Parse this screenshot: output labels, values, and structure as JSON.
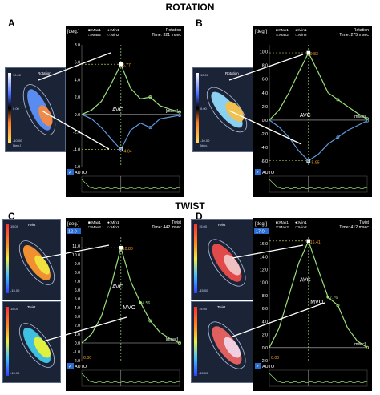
{
  "figure": {
    "section_rotation": "ROTATION",
    "section_twist": "TWIST"
  },
  "colors": {
    "plot_bg": "#000000",
    "curve_green": "#9be07a",
    "curve_blue": "#5f9be0",
    "marker_yellow": "#e6e65a",
    "peak_label_orange": "#f0a020",
    "axis_label": "#ffffff",
    "auto_box": "#2a6cd0"
  },
  "panels": [
    {
      "letter": "A",
      "unit": "[deg.]",
      "legend": [
        "■:Max1",
        "●:Min1",
        "□:Max2",
        "○:Min2"
      ],
      "title": "Rotation",
      "time": "Time: 321 msec",
      "yticks": [
        "8.0",
        "6.0",
        "4.0",
        "2.0",
        "0.0",
        "-2.0",
        "-4.0",
        "-6.0"
      ],
      "xunit": "[msec]",
      "event_label": "AVC",
      "peak_labels": [
        "5.77",
        "-4.04"
      ],
      "auto": "AUTO",
      "heart_title": "Rotation",
      "heart_scale": [
        "10.00",
        "0.00",
        "-10.00",
        "[deg.]"
      ]
    },
    {
      "letter": "B",
      "unit": "[deg.]",
      "legend": [
        "■:Max1",
        "●:Min1",
        "□:Max2",
        "○:Min2"
      ],
      "title": "Rotation",
      "time": "Time: 275 msec",
      "yticks": [
        "10.0",
        "8.0",
        "6.0",
        "4.0",
        "2.0",
        "0.0",
        "-2.0",
        "-4.0",
        "-6.0"
      ],
      "xunit": "[msec]",
      "event_label": "AVC",
      "peak_labels": [
        "9.83",
        "-5.95"
      ],
      "auto": "AUTO",
      "heart_title": "Rotation",
      "heart_scale": [
        "10.00",
        "0.00",
        "-10.00",
        "[deg.]"
      ]
    },
    {
      "letter": "C",
      "unit": "[deg.]",
      "top_tick": "12.0",
      "legend": [
        "■:Max1",
        "●:Min1",
        "□:Max2",
        "○:Min2"
      ],
      "title": "Twist",
      "time": "Time: 442 msec",
      "yticks": [
        "11.0",
        "10.0",
        "9.0",
        "8.0",
        "7.0",
        "6.0",
        "5.0",
        "4.0",
        "3.0",
        "2.0",
        "1.0",
        "0.0",
        "-1.0",
        "-2.0"
      ],
      "xunit": "[msec]",
      "event_labels": [
        "AVC",
        "MVO"
      ],
      "peak_labels": [
        "10.80",
        "4.56",
        "0.00"
      ],
      "auto": "AUTO",
      "heart_title": "Twist",
      "heart_scale": [
        "15.00",
        "0.00",
        "-15.00",
        "[deg.]"
      ]
    },
    {
      "letter": "D",
      "unit": "[deg.]",
      "top_tick": "17.0",
      "legend": [
        "■:Max1",
        "●:Min1",
        "□:Max2",
        "○:Min2"
      ],
      "title": "Twist",
      "time": "Time: 412 msec",
      "yticks": [
        "16.0",
        "14.0",
        "12.0",
        "10.0",
        "8.0",
        "6.0",
        "4.0",
        "2.0",
        "0.0",
        "-2.0"
      ],
      "xunit": "[msec]",
      "event_labels": [
        "AVC",
        "MVO"
      ],
      "peak_labels": [
        "16.41",
        "7.76",
        "0.00"
      ],
      "auto": "AUTO",
      "heart_title": "Twist",
      "heart_scale": [
        "15.00",
        "0.00",
        "-15.00",
        "[deg.]"
      ]
    }
  ],
  "chart_data": [
    {
      "type": "line",
      "panel": "A",
      "title": "Rotation",
      "ylabel": "[deg.]",
      "xlabel": "[msec]",
      "ylim": [
        -6,
        8
      ],
      "x": [
        0,
        10,
        20,
        30,
        40,
        50,
        60,
        70,
        80,
        90,
        100
      ],
      "series": [
        {
          "values": [
            0,
            0.5,
            1.5,
            3.5,
            5.77,
            3.0,
            1.8,
            2.0,
            1.0,
            0.6,
            0.3
          ]
        },
        {
          "values": [
            0,
            -0.5,
            -1.5,
            -2.8,
            -4.04,
            -1.8,
            -1.0,
            -1.5,
            -0.5,
            -0.3,
            -0.1
          ]
        }
      ],
      "annotations": [
        "5.77",
        "-4.04",
        "AVC"
      ]
    },
    {
      "type": "line",
      "panel": "B",
      "title": "Rotation",
      "ylabel": "[deg.]",
      "xlabel": "[msec]",
      "ylim": [
        -6.8,
        11
      ],
      "x": [
        0,
        10,
        20,
        30,
        40,
        50,
        60,
        70,
        80,
        90,
        100
      ],
      "series": [
        {
          "values": [
            0,
            1.5,
            4.0,
            7.0,
            9.83,
            7.0,
            4.0,
            3.0,
            2.0,
            1.0,
            0.2
          ]
        },
        {
          "values": [
            0,
            -1.0,
            -2.5,
            -4.5,
            -5.95,
            -5.0,
            -3.5,
            -2.5,
            -1.5,
            -0.8,
            -0.1
          ]
        }
      ],
      "annotations": [
        "9.83",
        "-5.95",
        "AVC"
      ]
    },
    {
      "type": "line",
      "panel": "C",
      "title": "Twist",
      "ylabel": "[deg.]",
      "xlabel": "[msec]",
      "ylim": [
        -2,
        12
      ],
      "x": [
        0,
        10,
        20,
        30,
        40,
        50,
        60,
        70,
        80,
        90,
        100
      ],
      "series": [
        {
          "values": [
            0,
            1.0,
            3.0,
            6.5,
            10.8,
            7.0,
            4.56,
            2.5,
            1.2,
            0.5,
            0.0
          ]
        }
      ],
      "annotations": [
        "10.80",
        "4.56",
        "0.00",
        "AVC",
        "MVO"
      ]
    },
    {
      "type": "line",
      "panel": "D",
      "title": "Twist",
      "ylabel": "[deg.]",
      "xlabel": "[msec]",
      "ylim": [
        -2,
        17
      ],
      "x": [
        0,
        10,
        20,
        30,
        40,
        50,
        60,
        70,
        80,
        90,
        100
      ],
      "series": [
        {
          "values": [
            0,
            3.0,
            8.0,
            13.0,
            16.41,
            12.0,
            7.76,
            6.5,
            3.0,
            1.0,
            0.0
          ]
        }
      ],
      "annotations": [
        "16.41",
        "7.76",
        "0.00",
        "AVC",
        "MVO"
      ]
    }
  ]
}
